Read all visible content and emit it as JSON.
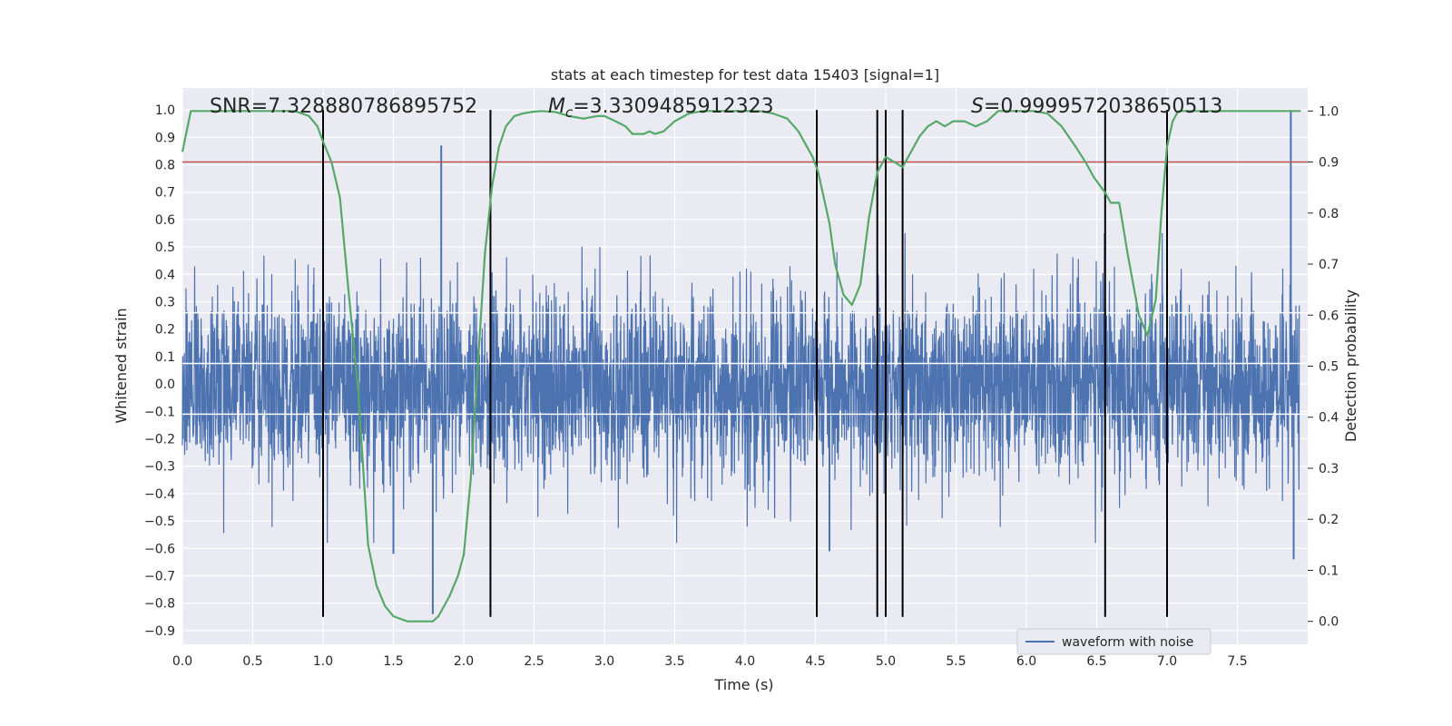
{
  "chart_data": {
    "type": "line",
    "title": "stats at each timestep for test data 15403 [signal=1]",
    "xlabel": "Time (s)",
    "ylabel_left": "Whitened strain",
    "ylabel_right": "Detection probability",
    "xlim": [
      0.0,
      8.0
    ],
    "ylim_left": [
      -0.95,
      1.08
    ],
    "ylim_right": [
      -0.045,
      1.045
    ],
    "x_ticks": [
      "0.0",
      "0.5",
      "1.0",
      "1.5",
      "2.0",
      "2.5",
      "3.0",
      "3.5",
      "4.0",
      "4.5",
      "5.0",
      "5.5",
      "6.0",
      "6.5",
      "7.0",
      "7.5"
    ],
    "y_ticks_left": [
      "1.0",
      "0.9",
      "0.8",
      "0.7",
      "0.6",
      "0.5",
      "0.4",
      "0.3",
      "0.2",
      "0.1",
      "0.0",
      "-0.1",
      "-0.2",
      "-0.3",
      "-0.4",
      "-0.5",
      "-0.6",
      "-0.7",
      "-0.8",
      "-0.9"
    ],
    "y_ticks_right": [
      "1.0",
      "0.9",
      "0.8",
      "0.7",
      "0.6",
      "0.5",
      "0.4",
      "0.3",
      "0.2",
      "0.1",
      "0.0"
    ],
    "annotations": {
      "snr": "SNR=7.328880786895752",
      "mc_symbol": "M",
      "mc_sub": "c",
      "mc_value": "=3.3309485912323",
      "s_symbol": "S",
      "s_value": "=0.9999572038650513"
    },
    "threshold_line": {
      "value": 0.9,
      "axis": "right",
      "color": "#c44e52"
    },
    "white_lines_left_y": [
      0.26,
      0.075,
      -0.11
    ],
    "vertical_lines_x": [
      1.0,
      2.19,
      4.51,
      4.94,
      5.0,
      5.12,
      6.56,
      7.0
    ],
    "vertical_lines_range_left": [
      -0.85,
      1.0
    ],
    "series": [
      {
        "name": "waveform with noise",
        "axis": "left",
        "color": "#4c72b0",
        "style": "noise",
        "envelope_typical": 0.3,
        "notable_spikes": [
          {
            "x": 1.84,
            "y": 0.87
          },
          {
            "x": 1.78,
            "y": -0.84
          },
          {
            "x": 1.5,
            "y": -0.62
          },
          {
            "x": 4.6,
            "y": -0.61
          },
          {
            "x": 7.88,
            "y": 1.0
          },
          {
            "x": 7.9,
            "y": -0.64
          }
        ]
      },
      {
        "name": "Detection probability",
        "axis": "right",
        "color": "#55a868",
        "x": [
          0.0,
          0.06,
          0.12,
          0.2,
          0.4,
          0.6,
          0.8,
          0.9,
          0.96,
          1.0,
          1.06,
          1.12,
          1.18,
          1.25,
          1.32,
          1.38,
          1.44,
          1.5,
          1.6,
          1.7,
          1.78,
          1.82,
          1.9,
          1.96,
          2.0,
          2.05,
          2.1,
          2.15,
          2.2,
          2.25,
          2.3,
          2.36,
          2.42,
          2.48,
          2.55,
          2.65,
          2.75,
          2.85,
          2.95,
          3.0,
          3.08,
          3.15,
          3.2,
          3.28,
          3.32,
          3.36,
          3.42,
          3.5,
          3.6,
          3.7,
          3.8,
          3.9,
          4.0,
          4.1,
          4.2,
          4.3,
          4.38,
          4.44,
          4.48,
          4.52,
          4.56,
          4.6,
          4.64,
          4.7,
          4.76,
          4.82,
          4.88,
          4.94,
          5.0,
          5.06,
          5.12,
          5.18,
          5.24,
          5.3,
          5.36,
          5.42,
          5.48,
          5.56,
          5.64,
          5.72,
          5.8,
          5.88,
          5.96,
          6.05,
          6.15,
          6.25,
          6.35,
          6.42,
          6.48,
          6.56,
          6.6,
          6.66,
          6.72,
          6.8,
          6.86,
          6.92,
          6.96,
          7.0,
          7.04,
          7.08,
          7.12,
          7.2,
          7.3,
          7.4,
          7.6,
          7.8,
          7.9,
          7.95
        ],
        "y": [
          0.92,
          1.0,
          1.0,
          1.0,
          1.0,
          1.0,
          1.0,
          0.99,
          0.97,
          0.94,
          0.9,
          0.83,
          0.65,
          0.45,
          0.15,
          0.07,
          0.03,
          0.01,
          0.0,
          0.0,
          0.0,
          0.01,
          0.05,
          0.09,
          0.13,
          0.28,
          0.5,
          0.72,
          0.85,
          0.93,
          0.97,
          0.99,
          0.995,
          0.998,
          1.0,
          0.998,
          0.99,
          0.985,
          0.99,
          0.99,
          0.98,
          0.97,
          0.955,
          0.955,
          0.96,
          0.955,
          0.96,
          0.98,
          0.995,
          1.0,
          1.0,
          1.0,
          1.0,
          1.0,
          0.995,
          0.985,
          0.96,
          0.93,
          0.91,
          0.88,
          0.83,
          0.78,
          0.7,
          0.64,
          0.62,
          0.66,
          0.79,
          0.88,
          0.91,
          0.9,
          0.89,
          0.92,
          0.95,
          0.97,
          0.98,
          0.97,
          0.98,
          0.98,
          0.97,
          0.98,
          1.0,
          1.0,
          1.0,
          1.0,
          0.995,
          0.97,
          0.93,
          0.9,
          0.87,
          0.84,
          0.82,
          0.82,
          0.72,
          0.6,
          0.56,
          0.63,
          0.8,
          0.93,
          0.98,
          1.0,
          1.0,
          1.0,
          1.0,
          1.0,
          1.0,
          1.0,
          1.0,
          1.0
        ]
      }
    ],
    "legend": {
      "label": "waveform with noise",
      "placement": "lower-right"
    }
  }
}
